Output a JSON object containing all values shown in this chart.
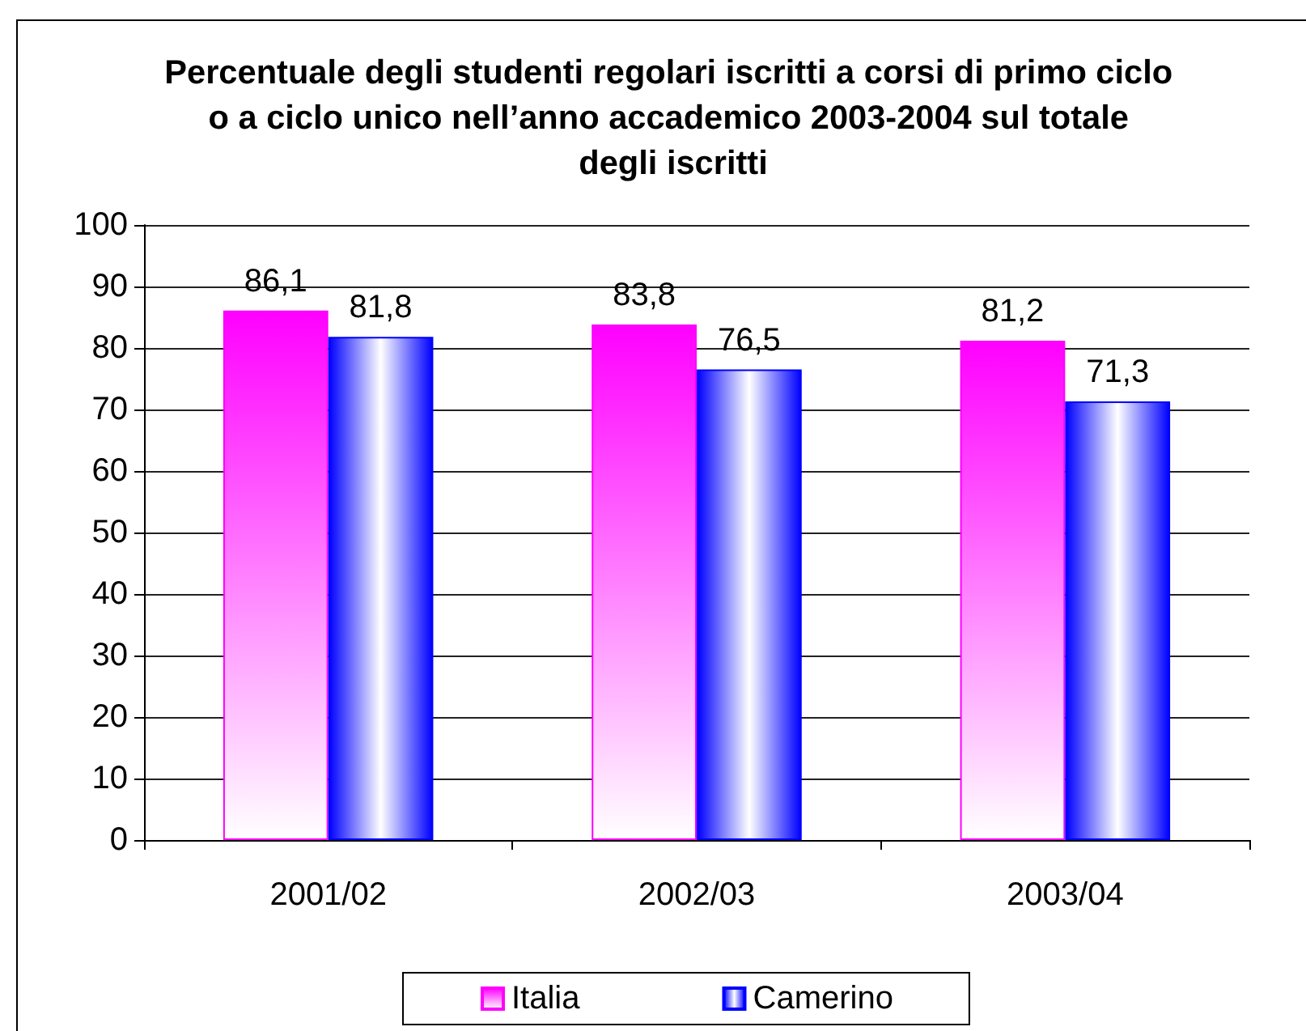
{
  "chart_data": {
    "type": "bar",
    "title": "Percentuale degli studenti regolari iscritti a corsi di primo ciclo o a ciclo unico nell’anno accademico 2003-2004 sul totale degli iscritti",
    "categories": [
      "2001/02",
      "2002/03",
      "2003/04"
    ],
    "series": [
      {
        "name": "Italia",
        "color": "#ff00ff",
        "values": [
          86.1,
          83.8,
          81.2
        ],
        "value_labels": [
          "86,1",
          "83,8",
          "81,2"
        ]
      },
      {
        "name": "Camerino",
        "color": "#0000ff",
        "values": [
          81.8,
          76.5,
          71.3
        ],
        "value_labels": [
          "81,8",
          "76,5",
          "71,3"
        ]
      }
    ],
    "ylim": [
      0,
      100
    ],
    "yticks": [
      0,
      10,
      20,
      30,
      40,
      50,
      60,
      70,
      80,
      90,
      100
    ],
    "grid": "y",
    "legend": "bottom"
  }
}
